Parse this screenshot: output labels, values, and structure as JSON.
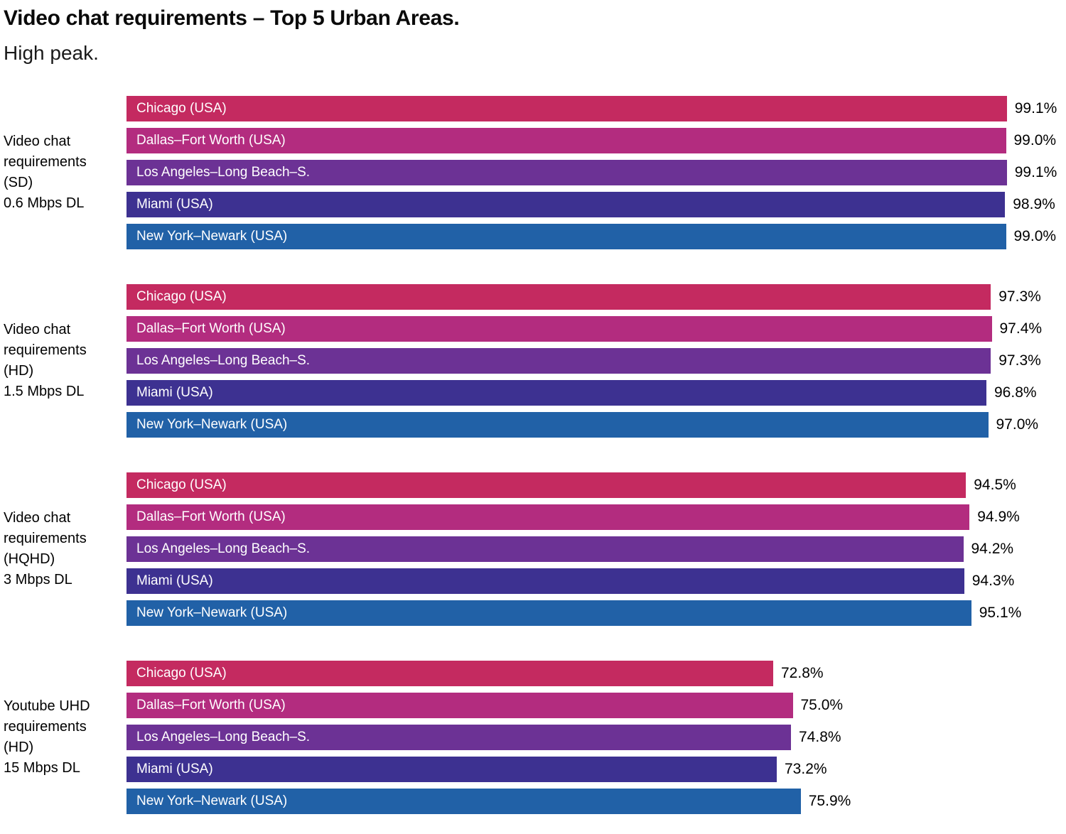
{
  "title": "Video chat requirements – Top 5 Urban Areas.",
  "subtitle": "High peak.",
  "chart_data": {
    "type": "bar",
    "orientation": "horizontal",
    "title": "Video chat requirements – Top 5 Urban Areas.",
    "subtitle": "High peak.",
    "unit": "%",
    "xlim": [
      0,
      100
    ],
    "grid": false,
    "legend": false,
    "value_labels": "end-of-bar, one decimal",
    "categories": [
      "Chicago (USA)",
      "Dallas–Fort Worth (USA)",
      "Los Angeles–Long Beach–S.",
      "Miami (USA)",
      "New York–Newark (USA)"
    ],
    "category_colors": [
      "#C42A60",
      "#B32C7F",
      "#6C3295",
      "#3D3191",
      "#2161A7"
    ],
    "groups": [
      {
        "label": "Video chat requirements (SD) 0.6 Mbps DL",
        "label_lines": [
          "Video chat",
          "requirements",
          "(SD)",
          "0.6 Mbps DL"
        ],
        "values": [
          99.1,
          99.0,
          99.1,
          98.9,
          99.0
        ]
      },
      {
        "label": "Video chat requirements (HD) 1.5 Mbps DL",
        "label_lines": [
          "Video chat",
          "requirements",
          "(HD)",
          "1.5 Mbps DL"
        ],
        "values": [
          97.3,
          97.4,
          97.3,
          96.8,
          97.0
        ]
      },
      {
        "label": "Video chat requirements (HQHD) 3 Mbps DL",
        "label_lines": [
          "Video chat",
          "requirements",
          "(HQHD)",
          "3 Mbps DL"
        ],
        "values": [
          94.5,
          94.9,
          94.2,
          94.3,
          95.1
        ]
      },
      {
        "label": "Youtube UHD requirements (HD) 15 Mbps DL",
        "label_lines": [
          "Youtube UHD",
          "requirements",
          "(HD)",
          "15 Mbps DL"
        ],
        "values": [
          72.8,
          75.0,
          74.8,
          73.2,
          75.9
        ]
      }
    ]
  }
}
